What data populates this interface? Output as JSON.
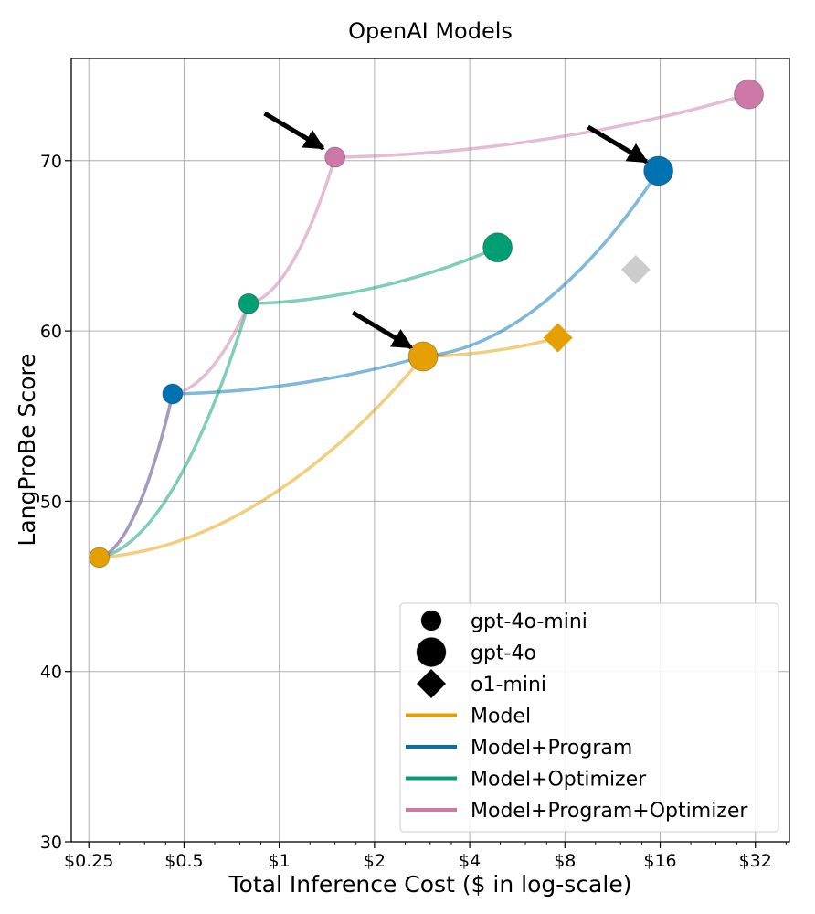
{
  "chart_data": {
    "type": "scatter",
    "title": "OpenAI Models",
    "xlabel": "Total Inference Cost ($ in log-scale)",
    "ylabel": "LangProBe Score",
    "xscale": "log2",
    "xlim": [
      0.22,
      41
    ],
    "ylim": [
      30,
      76
    ],
    "xticks": [
      {
        "value": 0.25,
        "label": "$0.25"
      },
      {
        "value": 0.5,
        "label": "$0.5"
      },
      {
        "value": 1,
        "label": "$1"
      },
      {
        "value": 2,
        "label": "$2"
      },
      {
        "value": 4,
        "label": "$4"
      },
      {
        "value": 8,
        "label": "$8"
      },
      {
        "value": 16,
        "label": "$16"
      },
      {
        "value": 32,
        "label": "$32"
      }
    ],
    "yticks": [
      {
        "value": 30,
        "label": "30"
      },
      {
        "value": 40,
        "label": "40"
      },
      {
        "value": 50,
        "label": "50"
      },
      {
        "value": 60,
        "label": "60"
      },
      {
        "value": 70,
        "label": "70"
      }
    ],
    "grid": true,
    "colors": {
      "model": "#E69F00",
      "program": "#0072B2",
      "optimizer": "#009E73",
      "program_optimizer": "#CC79A7",
      "o1_program": "#CCCCCC"
    },
    "series": [
      {
        "name": "Model",
        "color": "#E69F00",
        "points": [
          {
            "x": 0.27,
            "y": 46.7
          },
          {
            "x": 2.85,
            "y": 58.5
          },
          {
            "x": 7.6,
            "y": 59.6
          }
        ]
      },
      {
        "name": "Model+Program",
        "color": "#0072B2",
        "points": [
          {
            "x": 0.27,
            "y": 46.7
          },
          {
            "x": 0.46,
            "y": 56.3
          },
          {
            "x": 2.85,
            "y": 58.5
          },
          {
            "x": 15.8,
            "y": 69.4
          }
        ]
      },
      {
        "name": "Model+Optimizer",
        "color": "#009E73",
        "points": [
          {
            "x": 0.27,
            "y": 46.7
          },
          {
            "x": 0.8,
            "y": 61.6
          },
          {
            "x": 4.9,
            "y": 64.9
          }
        ]
      },
      {
        "name": "Model+Program+Optimizer",
        "color": "#CC79A7",
        "points": [
          {
            "x": 0.27,
            "y": 46.7
          },
          {
            "x": 0.46,
            "y": 56.3
          },
          {
            "x": 0.8,
            "y": 61.6
          },
          {
            "x": 1.5,
            "y": 70.2
          },
          {
            "x": 30.5,
            "y": 73.9
          }
        ]
      }
    ],
    "markers": [
      {
        "id": "base-mini",
        "shape": "circle",
        "size": "small",
        "x": 0.27,
        "y": 46.7,
        "color": "#E69F00"
      },
      {
        "id": "base-4o",
        "shape": "circle",
        "size": "large",
        "x": 2.85,
        "y": 58.5,
        "color": "#E69F00"
      },
      {
        "id": "base-o1",
        "shape": "diamond",
        "size": "large",
        "x": 7.6,
        "y": 59.6,
        "color": "#E69F00"
      },
      {
        "id": "program-mini",
        "shape": "circle",
        "size": "small",
        "x": 0.46,
        "y": 56.3,
        "color": "#0072B2"
      },
      {
        "id": "program-4o",
        "shape": "circle",
        "size": "large",
        "x": 15.8,
        "y": 69.4,
        "color": "#0072B2"
      },
      {
        "id": "program-o1",
        "shape": "diamond",
        "size": "large",
        "x": 13.4,
        "y": 63.6,
        "color": "#CCCCCC"
      },
      {
        "id": "optimizer-mini",
        "shape": "circle",
        "size": "small",
        "x": 0.8,
        "y": 61.6,
        "color": "#009E73"
      },
      {
        "id": "optimizer-4o",
        "shape": "circle",
        "size": "large",
        "x": 4.9,
        "y": 64.9,
        "color": "#009E73"
      },
      {
        "id": "prog-opt-mini",
        "shape": "circle",
        "size": "small",
        "x": 1.5,
        "y": 70.2,
        "color": "#CC79A7"
      },
      {
        "id": "prog-opt-4o",
        "shape": "circle",
        "size": "large",
        "x": 30.5,
        "y": 73.9,
        "color": "#CC79A7"
      }
    ],
    "annotations": [
      {
        "type": "arrow",
        "target_x": 1.5,
        "target_y": 70.2
      },
      {
        "type": "arrow",
        "target_x": 15.8,
        "target_y": 69.4
      },
      {
        "type": "arrow",
        "target_x": 2.85,
        "target_y": 58.5
      }
    ],
    "legend": {
      "position": "lower-right",
      "marker_entries": [
        {
          "label": "gpt-4o-mini",
          "shape": "circle",
          "size": "small"
        },
        {
          "label": "gpt-4o",
          "shape": "circle",
          "size": "large"
        },
        {
          "label": "o1-mini",
          "shape": "diamond",
          "size": "large"
        }
      ],
      "line_entries": [
        {
          "label": "Model",
          "color": "#E69F00"
        },
        {
          "label": "Model+Program",
          "color": "#0072B2"
        },
        {
          "label": "Model+Optimizer",
          "color": "#009E73"
        },
        {
          "label": "Model+Program+Optimizer",
          "color": "#CC79A7"
        }
      ]
    }
  }
}
